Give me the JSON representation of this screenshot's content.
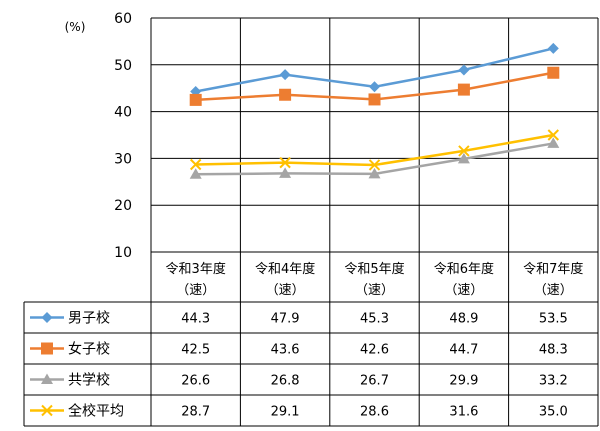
{
  "chart_data": {
    "type": "line",
    "title": "",
    "unit_label": "(%)",
    "ylim": [
      10,
      60
    ],
    "yticks": [
      10,
      20,
      30,
      40,
      50,
      60
    ],
    "grid": true,
    "legend": "left-of-table",
    "categories": [
      [
        "令和3年度",
        "（速）"
      ],
      [
        "令和4年度",
        "（速）"
      ],
      [
        "令和5年度",
        "（速）"
      ],
      [
        "令和6年度",
        "（速）"
      ],
      [
        "令和7年度",
        "（速）"
      ]
    ],
    "series": [
      {
        "name": "男子校",
        "color": "#5B9BD5",
        "marker": "diamond",
        "values": [
          44.3,
          47.9,
          45.3,
          48.9,
          53.5
        ],
        "labels": [
          "44.3",
          "47.9",
          "45.3",
          "48.9",
          "53.5"
        ]
      },
      {
        "name": "女子校",
        "color": "#ED7D31",
        "marker": "square",
        "values": [
          42.5,
          43.6,
          42.6,
          44.7,
          48.3
        ],
        "labels": [
          "42.5",
          "43.6",
          "42.6",
          "44.7",
          "48.3"
        ]
      },
      {
        "name": "共学校",
        "color": "#A5A5A5",
        "marker": "triangle",
        "values": [
          26.6,
          26.8,
          26.7,
          29.9,
          33.2
        ],
        "labels": [
          "26.6",
          "26.8",
          "26.7",
          "29.9",
          "33.2"
        ]
      },
      {
        "name": "全校平均",
        "color": "#FFC000",
        "marker": "x",
        "values": [
          28.7,
          29.1,
          28.6,
          31.6,
          35.0
        ],
        "labels": [
          "28.7",
          "29.1",
          "28.6",
          "31.6",
          "35.0"
        ]
      }
    ]
  }
}
